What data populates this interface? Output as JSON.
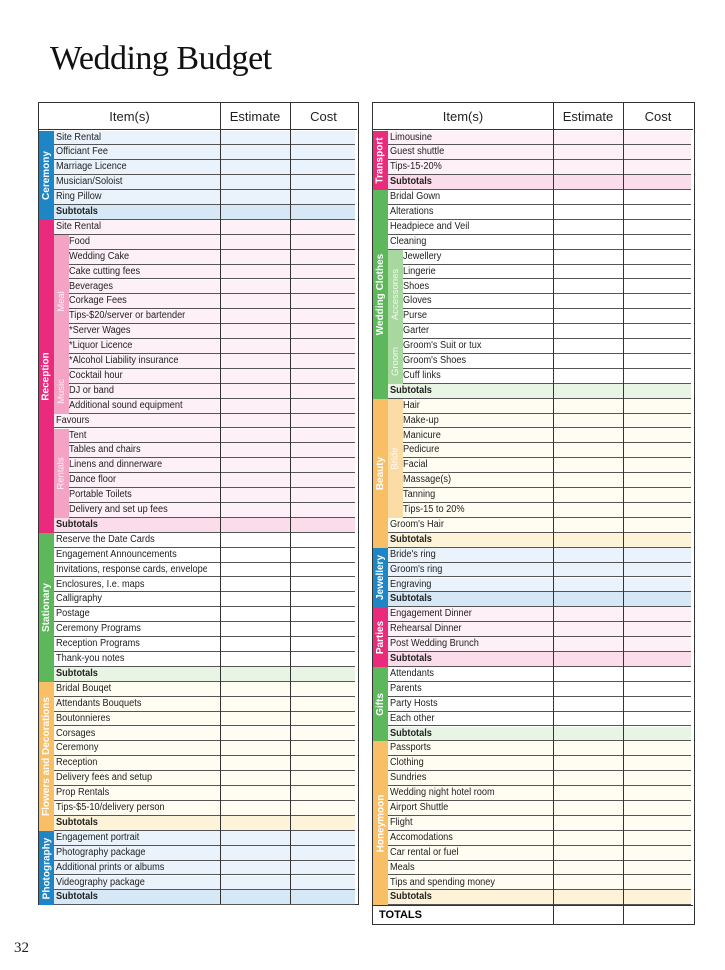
{
  "title": "Wedding Budget",
  "page_number": "32",
  "headers": {
    "item": "Item(s)",
    "estimate": "Estimate",
    "cost": "Cost"
  },
  "subtotal_label": "Subtotals",
  "totals_label": "TOTALS",
  "left_sections": [
    {
      "label": "Ceremony",
      "color": "#1f86c6",
      "tint": "#eaf3fb",
      "subtint": "#d6e8f6",
      "groups": [
        {
          "label": "",
          "items": [
            "Site Rental",
            "Officiant Fee",
            "Marriage Licence",
            "Musician/Soloist",
            "Ring Pillow"
          ]
        }
      ]
    },
    {
      "label": "Reception",
      "color": "#ea2a7b",
      "tint": "#fdf0f6",
      "subtint": "#fbdcea",
      "subcolor": "#f5a3c4",
      "groups": [
        {
          "label": "",
          "items": [
            "Site Rental"
          ]
        },
        {
          "label": "Meal",
          "items": [
            "Food",
            "Wedding Cake",
            "Cake cutting fees",
            "Beverages",
            "Corkage Fees",
            "Tips-$20/server or bartender",
            "*Server Wages",
            "*Liquor Licence",
            "*Alcohol Liability insurance"
          ]
        },
        {
          "label": "Music",
          "items": [
            "Cocktail hour",
            "DJ or band",
            "Additional sound equipment"
          ]
        },
        {
          "label": "",
          "items": [
            "Favours"
          ]
        },
        {
          "label": "Rentals",
          "items": [
            "Tent",
            "Tables and chairs",
            "Linens and dinnerware",
            "Dance floor",
            "Portable Toilets",
            "Delivery and set up fees"
          ]
        }
      ]
    },
    {
      "label": "Stationary",
      "color": "#5cb85a",
      "tint": "#ffffff",
      "subtint": "#e8f5e4",
      "groups": [
        {
          "label": "",
          "items": [
            "Reserve the Date Cards",
            "Engagement Announcements",
            "Invitations, response cards, envelopes",
            "Enclosures, I.e. maps",
            "Calligraphy",
            "Postage",
            "Ceremony Programs",
            "Reception Programs",
            "Thank-you notes"
          ]
        }
      ]
    },
    {
      "label": "Flowers and Decorations",
      "color": "#f8bf66",
      "tint": "#fffdf2",
      "subtint": "#fdf3d8",
      "groups": [
        {
          "label": "",
          "items": [
            "Bridal Bouqet",
            "Attendants Bouquets",
            "Boutonnieres",
            "Corsages",
            "Ceremony",
            "Reception",
            "Delivery fees and setup",
            "Prop Rentals",
            "Tips-$5-10/delivery person"
          ]
        }
      ]
    },
    {
      "label": "Photography",
      "color": "#1f86c6",
      "tint": "#eaf3fb",
      "subtint": "#d6e8f6",
      "groups": [
        {
          "label": "",
          "items": [
            "Engagement portrait",
            "Photography package",
            "Additional prints or albums",
            "Videography package"
          ]
        }
      ]
    }
  ],
  "right_sections": [
    {
      "label": "Transport",
      "color": "#ea2a7b",
      "tint": "#fdf0f6",
      "subtint": "#fbdcea",
      "groups": [
        {
          "label": "",
          "items": [
            "Limousine",
            "Guest shuttle",
            "Tips-15-20%"
          ]
        }
      ]
    },
    {
      "label": "Wedding Clothes",
      "color": "#5cb85a",
      "tint": "#ffffff",
      "subtint": "#e8f5e4",
      "subcolor": "#a8d8a0",
      "groups": [
        {
          "label": "",
          "items": [
            "Bridal Gown",
            "Alterations",
            "Headpiece and Veil",
            "Cleaning"
          ]
        },
        {
          "label": "Accessories",
          "items": [
            "Jewellery",
            "Lingerie",
            "Shoes",
            "Gloves",
            "Purse",
            "Garter"
          ]
        },
        {
          "label": "Groom",
          "items": [
            "Groom's Suit or tux",
            "Groom's Shoes",
            "Cuff links"
          ]
        }
      ]
    },
    {
      "label": "Beauty",
      "color": "#f8bf66",
      "tint": "#fffdf2",
      "subtint": "#fdf3d8",
      "subcolor": "#fbdca6",
      "groups": [
        {
          "label": "Bride",
          "items": [
            "Hair",
            "Make-up",
            "Manicure",
            "Pedicure",
            "Facial",
            "Massage(s)",
            "Tanning",
            "Tips-15 to 20%"
          ]
        },
        {
          "label": "",
          "items": [
            "Groom's Hair"
          ]
        }
      ]
    },
    {
      "label": "Jewellery",
      "color": "#1f86c6",
      "tint": "#eaf3fb",
      "subtint": "#d6e8f6",
      "groups": [
        {
          "label": "",
          "items": [
            "Bride's ring",
            "Groom's ring",
            "Engraving"
          ]
        }
      ]
    },
    {
      "label": "Parties",
      "color": "#ea2a7b",
      "tint": "#fdf0f6",
      "subtint": "#fbdcea",
      "groups": [
        {
          "label": "",
          "items": [
            "Engagement Dinner",
            "Rehearsal Dinner",
            "Post Wedding Brunch"
          ]
        }
      ]
    },
    {
      "label": "Gifts",
      "color": "#5cb85a",
      "tint": "#ffffff",
      "subtint": "#e8f5e4",
      "groups": [
        {
          "label": "",
          "items": [
            "Attendants",
            "Parents",
            "Party Hosts",
            "Each other"
          ]
        }
      ]
    },
    {
      "label": "Honeymoon",
      "color": "#f8bf66",
      "tint": "#fffdf2",
      "subtint": "#fdf3d8",
      "groups": [
        {
          "label": "",
          "items": [
            "Passports",
            "Clothing",
            "Sundries",
            "Wedding night hotel room",
            "Airport Shuttle",
            "Flight",
            "Accomodations",
            "Car rental or fuel",
            "Meals",
            "Tips and spending money"
          ]
        }
      ]
    }
  ]
}
